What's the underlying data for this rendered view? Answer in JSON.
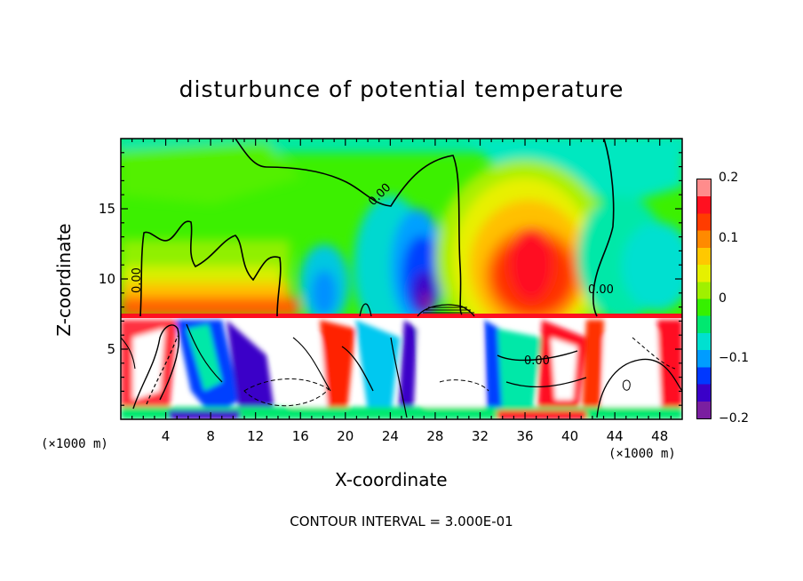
{
  "chart_data": {
    "type": "heatmap",
    "title": "disturbunce of potential temperature",
    "xlabel": "X-coordinate",
    "ylabel": "Z-coordinate",
    "x_unit_left": "(×1000 m)",
    "x_unit_right": "(×1000 m)",
    "xlim": [
      0,
      50
    ],
    "ylim": [
      0,
      20
    ],
    "x_ticks": [
      4,
      8,
      12,
      16,
      20,
      24,
      28,
      32,
      36,
      40,
      44,
      48
    ],
    "y_ticks": [
      5,
      10,
      15
    ],
    "contour_interval_text": "CONTOUR INTERVAL = 3.000E-01",
    "contour_labels": [
      {
        "text": "0.00",
        "x": 23,
        "z": 16.2
      },
      {
        "text": "0.00",
        "x": 1.9,
        "z": 10.2
      },
      {
        "text": "0.00",
        "x": 41.5,
        "z": 9.6
      },
      {
        "text": "0.00",
        "x": 37,
        "z": 4.3
      }
    ],
    "colorbar": {
      "range": [
        -0.2,
        0.2
      ],
      "tick_labels": [
        "0.2",
        "0.1",
        "0",
        "−0.1",
        "−0.2"
      ],
      "tick_values": [
        0.2,
        0.1,
        0,
        -0.1,
        -0.2
      ],
      "colors": [
        "#7a1fa0",
        "#3a00c8",
        "#0038ff",
        "#009cff",
        "#00e0d0",
        "#00e870",
        "#36f000",
        "#a0f000",
        "#e6f000",
        "#ffc800",
        "#ff8a00",
        "#ff3c00",
        "#ff1020",
        "#ff8c8c"
      ]
    }
  }
}
